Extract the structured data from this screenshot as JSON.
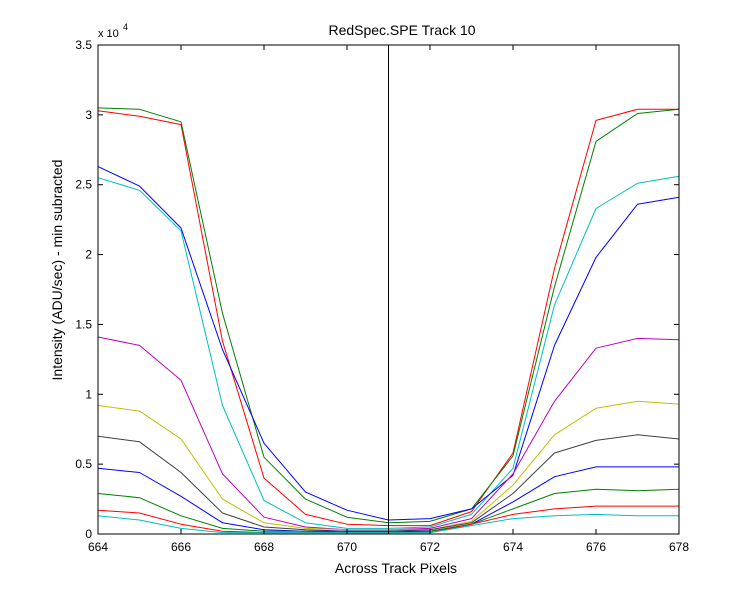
{
  "chart_data": {
    "type": "line",
    "title": "RedSpec.SPE   Track 10",
    "xlabel": "Across Track Pixels",
    "ylabel": "Intensity (ADU/sec) - min subracted",
    "y_exponent_label": "x 10",
    "y_exponent_power": "4",
    "xlim": [
      664,
      678
    ],
    "ylim": [
      0,
      3.5
    ],
    "x_ticks": [
      664,
      666,
      668,
      670,
      672,
      674,
      676,
      678
    ],
    "x_tick_labels": [
      "664",
      "666",
      "668",
      "670",
      "672",
      "674",
      "676",
      "678"
    ],
    "y_ticks": [
      0,
      0.5,
      1,
      1.5,
      2,
      2.5,
      3,
      3.5
    ],
    "y_tick_labels": [
      "0",
      "0.5",
      "1",
      "1.5",
      "2",
      "2.5",
      "3",
      "3.5"
    ],
    "grid": false,
    "vertical_line_x": 671,
    "x": [
      664,
      665,
      666,
      667,
      668,
      669,
      670,
      671,
      672,
      673,
      674,
      675,
      676,
      677,
      678
    ],
    "series": [
      {
        "color": "#ff0000",
        "values": [
          3.03,
          2.99,
          2.93,
          1.38,
          0.4,
          0.14,
          0.07,
          0.06,
          0.06,
          0.16,
          0.58,
          1.9,
          2.96,
          3.04,
          3.04
        ]
      },
      {
        "color": "#008000",
        "values": [
          3.05,
          3.04,
          2.95,
          1.58,
          0.55,
          0.25,
          0.12,
          0.08,
          0.09,
          0.18,
          0.56,
          1.77,
          2.81,
          3.01,
          3.04
        ]
      },
      {
        "color": "#00bfbf",
        "values": [
          2.55,
          2.46,
          2.17,
          0.92,
          0.24,
          0.08,
          0.04,
          0.04,
          0.05,
          0.14,
          0.47,
          1.64,
          2.33,
          2.51,
          2.56
        ]
      },
      {
        "color": "#0000ff",
        "values": [
          2.63,
          2.49,
          2.19,
          1.32,
          0.65,
          0.3,
          0.17,
          0.1,
          0.11,
          0.18,
          0.42,
          1.35,
          1.98,
          2.36,
          2.41
        ]
      },
      {
        "color": "#bf00bf",
        "values": [
          1.41,
          1.35,
          1.1,
          0.43,
          0.12,
          0.05,
          0.03,
          0.03,
          0.04,
          0.11,
          0.43,
          0.95,
          1.33,
          1.4,
          1.39
        ]
      },
      {
        "color": "#bfbf00",
        "values": [
          0.92,
          0.88,
          0.68,
          0.25,
          0.08,
          0.04,
          0.03,
          0.03,
          0.03,
          0.09,
          0.35,
          0.71,
          0.9,
          0.95,
          0.93
        ]
      },
      {
        "color": "#404040",
        "values": [
          0.7,
          0.66,
          0.44,
          0.15,
          0.05,
          0.03,
          0.02,
          0.02,
          0.03,
          0.08,
          0.29,
          0.58,
          0.67,
          0.71,
          0.68
        ]
      },
      {
        "color": "#0000ff",
        "values": [
          0.47,
          0.44,
          0.27,
          0.08,
          0.03,
          0.02,
          0.02,
          0.02,
          0.02,
          0.07,
          0.23,
          0.41,
          0.48,
          0.48,
          0.48
        ]
      },
      {
        "color": "#008000",
        "values": [
          0.29,
          0.26,
          0.13,
          0.04,
          0.02,
          0.02,
          0.01,
          0.01,
          0.02,
          0.07,
          0.18,
          0.29,
          0.32,
          0.31,
          0.32
        ]
      },
      {
        "color": "#ff0000",
        "values": [
          0.17,
          0.15,
          0.07,
          0.02,
          0.01,
          0.01,
          0.01,
          0.01,
          0.01,
          0.07,
          0.14,
          0.18,
          0.2,
          0.2,
          0.2
        ]
      },
      {
        "color": "#00bfbf",
        "values": [
          0.13,
          0.1,
          0.04,
          0.01,
          0.01,
          0.01,
          0.01,
          0.01,
          0.01,
          0.06,
          0.11,
          0.13,
          0.14,
          0.13,
          0.13
        ]
      }
    ]
  }
}
